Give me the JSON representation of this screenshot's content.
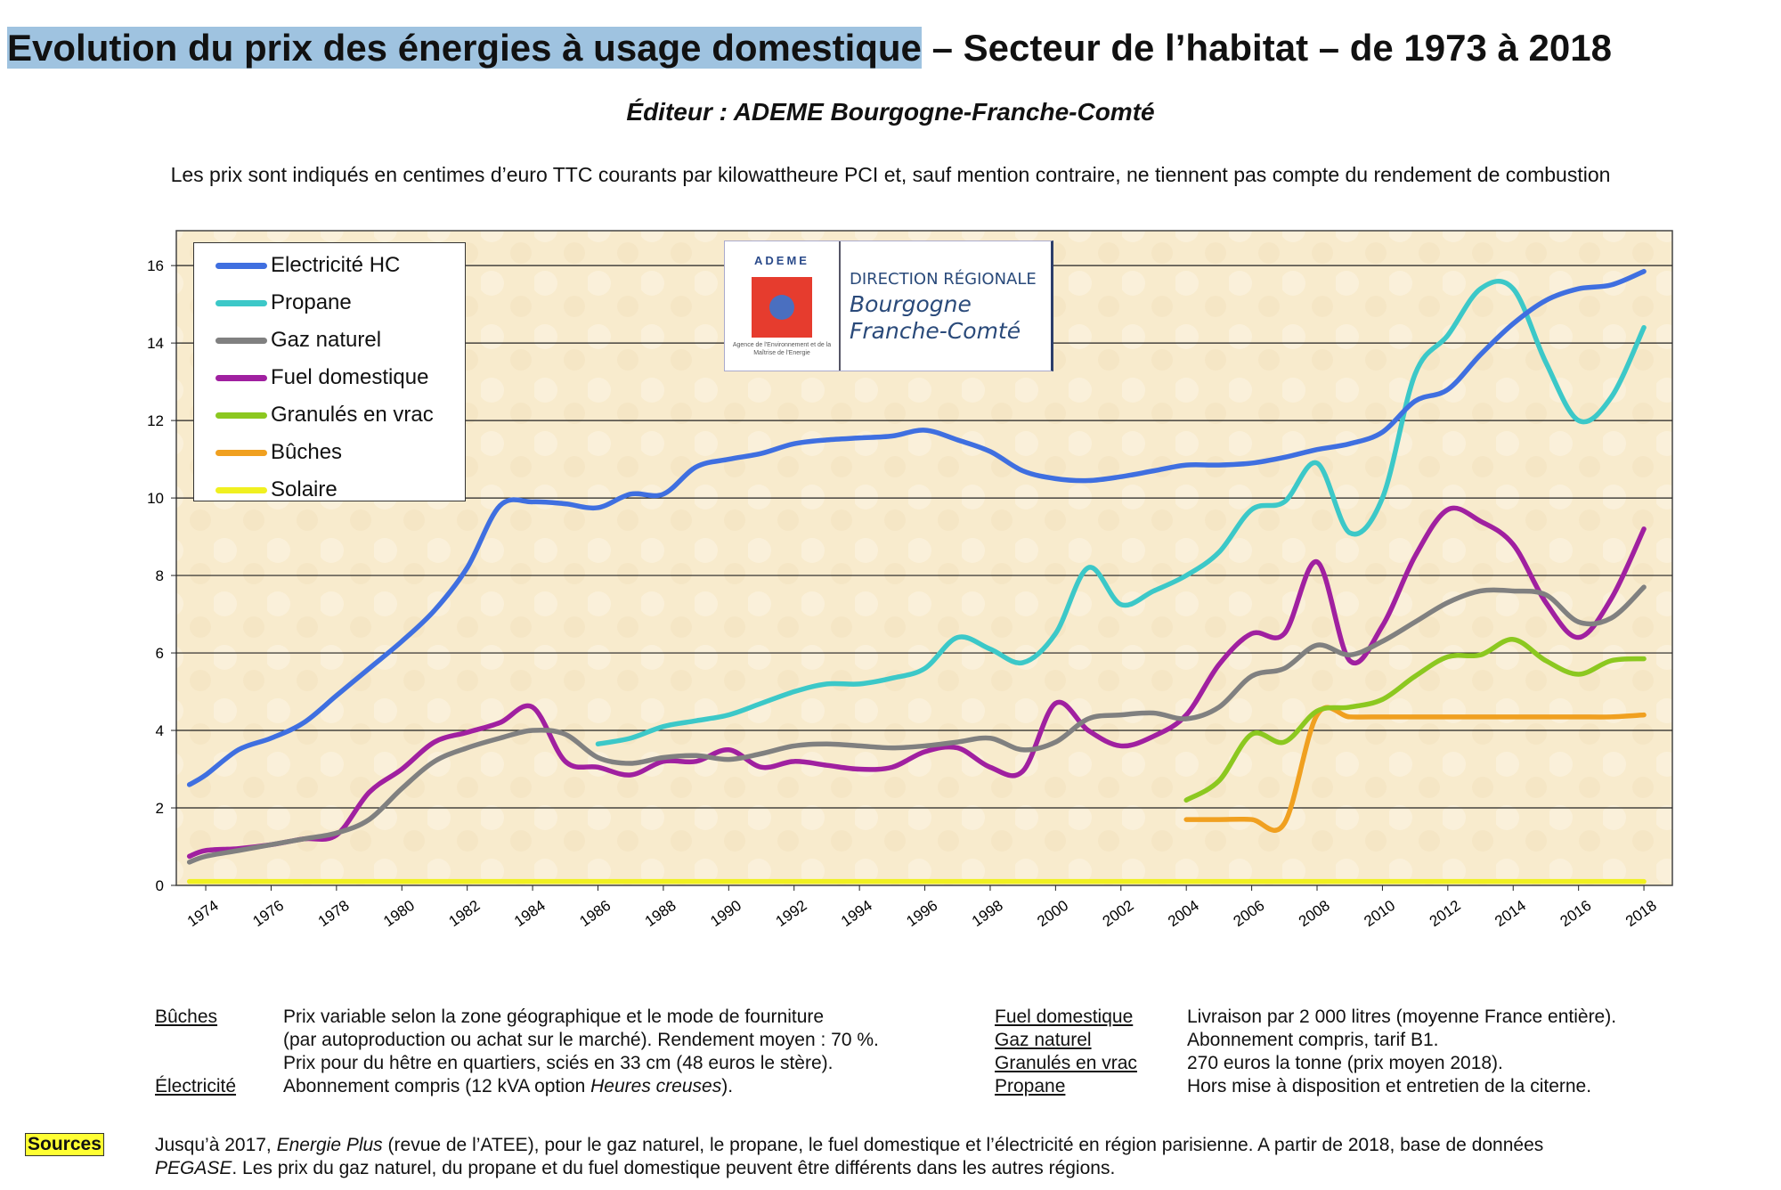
{
  "header": {
    "title_highlight": "Evolution du prix des énergies à usage domestique",
    "title_rest": " – Secteur de l’habitat – de 1973 à 2018",
    "subtitle": "Éditeur : ADEME Bourgogne-Franche-Comté",
    "note": "Les prix sont indiqués en centimes d’euro TTC courants par kilowattheure PCI et, sauf mention contraire, ne tiennent pas compte du rendement de combustion"
  },
  "logo": {
    "brand": "ADEME",
    "agency": "Agence de l'Environnement et de la Maîtrise de l'Energie",
    "line1": "DIRECTION RÉGIONALE",
    "line2": "Bourgogne",
    "line3": "Franche-Comté"
  },
  "chart_data": {
    "type": "line",
    "title": "",
    "xlabel": "",
    "ylabel": "",
    "ylim": [
      0,
      16.9
    ],
    "xlim": [
      1973.1,
      2018.87
    ],
    "grid": true,
    "legend_position": "top-left",
    "yticks": [
      0,
      2,
      4,
      6,
      8,
      10,
      12,
      14,
      16
    ],
    "xticks": [
      1974,
      1976,
      1978,
      1980,
      1982,
      1984,
      1986,
      1988,
      1990,
      1992,
      1994,
      1996,
      1998,
      2000,
      2002,
      2004,
      2006,
      2008,
      2010,
      2012,
      2014,
      2016,
      2018
    ],
    "series": [
      {
        "name": "Electricité HC",
        "color": "#3f6fe0",
        "start": 1973.5,
        "values": [
          2.6,
          2.85,
          3.5,
          3.8,
          4.2,
          4.9,
          5.6,
          6.3,
          7.1,
          8.2,
          9.8,
          9.9,
          9.85,
          9.75,
          10.1,
          10.1,
          10.8,
          11.0,
          11.15,
          11.4,
          11.5,
          11.55,
          11.6,
          11.75,
          11.5,
          11.2,
          10.7,
          10.5,
          10.45,
          10.55,
          10.7,
          10.85,
          10.85,
          10.9,
          11.05,
          11.25,
          11.4,
          11.7,
          12.5,
          12.8,
          13.7,
          14.5,
          15.1,
          15.4,
          15.5,
          15.85
        ]
      },
      {
        "name": "Propane",
        "color": "#3cc8c8",
        "start": 1986,
        "values": [
          3.65,
          3.8,
          4.1,
          4.25,
          4.4,
          4.7,
          5.0,
          5.2,
          5.2,
          5.35,
          5.6,
          6.4,
          6.1,
          5.75,
          6.5,
          8.2,
          7.25,
          7.6,
          8.0,
          8.6,
          9.7,
          9.9,
          10.9,
          9.1,
          10.0,
          13.2,
          14.2,
          15.4,
          15.4,
          13.5,
          12.0,
          12.6,
          14.4
        ]
      },
      {
        "name": "Gaz naturel",
        "color": "#808080",
        "start": 1973.5,
        "values": [
          0.6,
          0.75,
          0.9,
          1.05,
          1.2,
          1.35,
          1.7,
          2.5,
          3.2,
          3.55,
          3.8,
          4.0,
          3.9,
          3.3,
          3.15,
          3.3,
          3.35,
          3.25,
          3.4,
          3.6,
          3.65,
          3.6,
          3.55,
          3.6,
          3.7,
          3.8,
          3.5,
          3.7,
          4.3,
          4.4,
          4.45,
          4.3,
          4.6,
          5.4,
          5.6,
          6.2,
          5.95,
          6.3,
          6.8,
          7.3,
          7.6,
          7.6,
          7.5,
          6.8,
          6.9,
          7.7
        ]
      },
      {
        "name": "Fuel domestique",
        "color": "#a020a0",
        "start": 1973.5,
        "values": [
          0.75,
          0.9,
          0.95,
          1.05,
          1.2,
          1.3,
          2.4,
          3.0,
          3.7,
          3.95,
          4.2,
          4.6,
          3.2,
          3.05,
          2.85,
          3.2,
          3.2,
          3.5,
          3.05,
          3.2,
          3.1,
          3.0,
          3.05,
          3.45,
          3.55,
          3.05,
          2.95,
          4.7,
          4.0,
          3.6,
          3.85,
          4.4,
          5.7,
          6.5,
          6.5,
          8.35,
          5.8,
          6.7,
          8.5,
          9.7,
          9.4,
          8.8,
          7.3,
          6.4,
          7.4,
          9.2
        ]
      },
      {
        "name": "Granulés en vrac",
        "color": "#8cc820",
        "start": 2004,
        "values": [
          2.2,
          2.7,
          3.9,
          3.7,
          4.5,
          4.6,
          4.8,
          5.4,
          5.9,
          5.95,
          6.35,
          5.8,
          5.45,
          5.8,
          5.85
        ]
      },
      {
        "name": "Bûches",
        "color": "#f0a020",
        "start": 2004,
        "values": [
          1.7,
          1.7,
          1.7,
          1.6,
          4.4,
          4.35,
          4.35,
          4.35,
          4.35,
          4.35,
          4.35,
          4.35,
          4.35,
          4.35,
          4.4
        ]
      },
      {
        "name": "Solaire",
        "color": "#f0f020",
        "start": 1973.5,
        "values": [
          0.1,
          0.1,
          0.1,
          0.1,
          0.1,
          0.1,
          0.1,
          0.1,
          0.1,
          0.1,
          0.1,
          0.1,
          0.1,
          0.1,
          0.1,
          0.1,
          0.1,
          0.1,
          0.1,
          0.1,
          0.1,
          0.1,
          0.1,
          0.1,
          0.1,
          0.1,
          0.1,
          0.1,
          0.1,
          0.1,
          0.1,
          0.1,
          0.1,
          0.1,
          0.1,
          0.1,
          0.1,
          0.1,
          0.1,
          0.1,
          0.1,
          0.1,
          0.1,
          0.1,
          0.1,
          0.1
        ]
      }
    ]
  },
  "footnotes": {
    "buches_label": "Bûches",
    "buches_1": "Prix variable selon la zone géographique et le mode de fourniture",
    "buches_2": "(par autoproduction ou achat sur le marché). Rendement moyen : 70 %.",
    "buches_3": "Prix pour du hêtre en quartiers, sciés en 33 cm (48 euros le stère).",
    "elec_label": "Électricité",
    "elec_1": "Abonnement compris (12 kVA option ",
    "elec_2": "Heures creuses",
    "elec_3": ").",
    "fuel_label": "Fuel domestique",
    "fuel_text": "Livraison par 2 000 litres (moyenne France entière).",
    "gaz_label": "Gaz naturel",
    "gaz_text": "Abonnement compris, tarif B1.",
    "gran_label": "Granulés en vrac",
    "gran_text": "270 euros la tonne (prix moyen 2018).",
    "prop_label": "Propane",
    "prop_text": "Hors mise à disposition et entretien de la citerne."
  },
  "sources": {
    "label": "Sources",
    "l1a": "Jusqu’à 2017, ",
    "l1b": "Energie Plus",
    "l1c": " (revue de l’ATEE), pour le gaz naturel, le propane, le fuel domestique et l’électricité en région parisienne. A partir de 2018, base de données",
    "l2a": "PEGASE",
    "l2b": ". Les prix du gaz naturel, du propane et du fuel domestique peuvent être différents dans les autres régions."
  }
}
